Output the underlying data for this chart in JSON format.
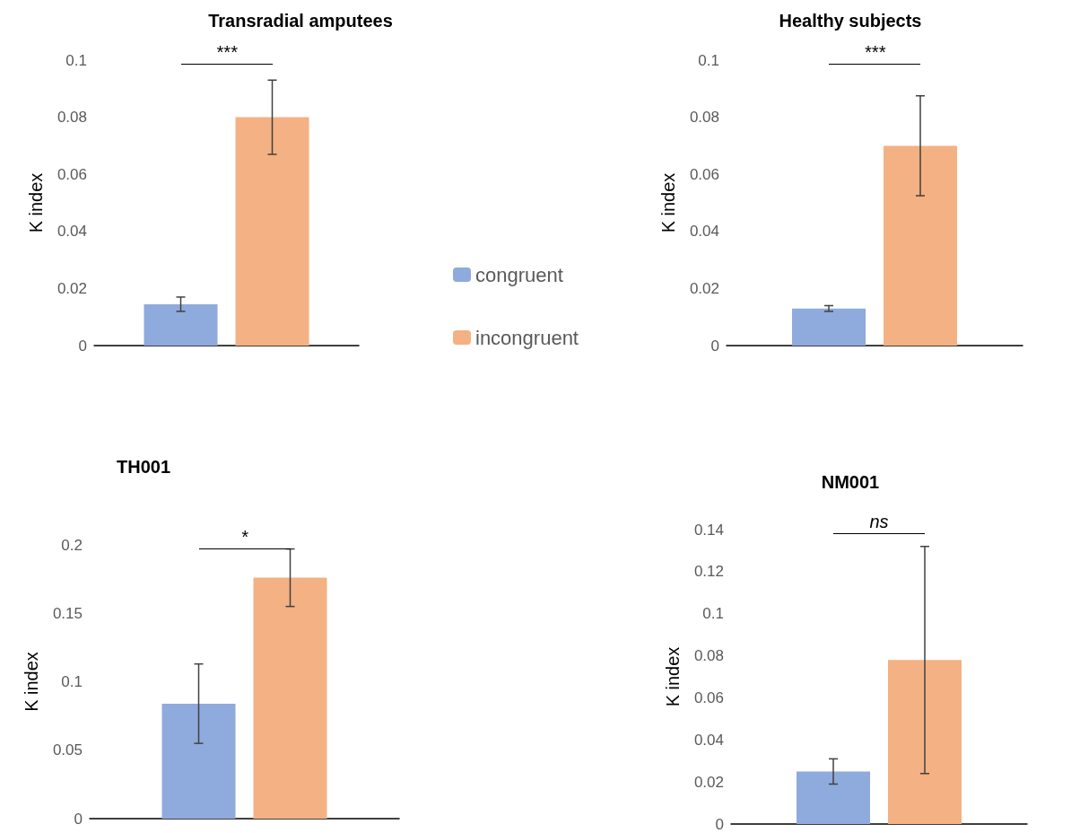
{
  "chart_data": [
    {
      "type": "bar",
      "title": "Transradial amputees",
      "ylabel": "K index",
      "categories": [
        null
      ],
      "ylim": [
        0,
        0.1
      ],
      "yticks": [
        0,
        0.02,
        0.04,
        0.06,
        0.08,
        0.1
      ],
      "grid": false,
      "legend": "right",
      "annotations": [
        "***"
      ],
      "series": [
        {
          "name": "congruent",
          "color": "#8faadc",
          "values": [
            0.0145
          ],
          "errors": [
            0.0025
          ]
        },
        {
          "name": "incongruent",
          "color": "#f4b183",
          "values": [
            0.08
          ],
          "errors": [
            0.013
          ]
        }
      ]
    },
    {
      "type": "bar",
      "title": "Healthy subjects",
      "ylabel": "K index",
      "categories": [
        null
      ],
      "ylim": [
        0,
        0.1
      ],
      "yticks": [
        0,
        0.02,
        0.04,
        0.06,
        0.08,
        0.1
      ],
      "grid": false,
      "annotations": [
        "***"
      ],
      "series": [
        {
          "color": "#8faadc",
          "values": [
            0.013
          ],
          "errors": [
            0.001
          ]
        },
        {
          "color": "#f4b183",
          "values": [
            0.07
          ],
          "errors": [
            0.0175
          ]
        }
      ]
    },
    {
      "type": "bar",
      "title": "TH001",
      "ylabel": "K index",
      "categories": [
        null
      ],
      "ylim": [
        0,
        0.2
      ],
      "yticks": [
        0,
        0.05,
        0.1,
        0.15,
        0.2
      ],
      "grid": false,
      "annotations": [
        "*"
      ],
      "series": [
        {
          "color": "#8faadc",
          "values": [
            0.084
          ],
          "errors": [
            0.029
          ]
        },
        {
          "color": "#f4b183",
          "values": [
            0.176
          ],
          "errors": [
            0.021
          ]
        }
      ]
    },
    {
      "type": "bar",
      "title": "NM001",
      "ylabel": "K index",
      "categories": [
        null
      ],
      "ylim": [
        0,
        0.14
      ],
      "yticks": [
        0,
        0.02,
        0.04,
        0.06,
        0.08,
        0.1,
        0.12,
        0.14
      ],
      "grid": false,
      "annotations": [
        "ns"
      ],
      "series": [
        {
          "color": "#8faadc",
          "values": [
            0.025
          ],
          "errors": [
            0.006
          ]
        },
        {
          "color": "#f4b183",
          "values": [
            0.078
          ],
          "errors": [
            0.054
          ]
        }
      ]
    }
  ]
}
